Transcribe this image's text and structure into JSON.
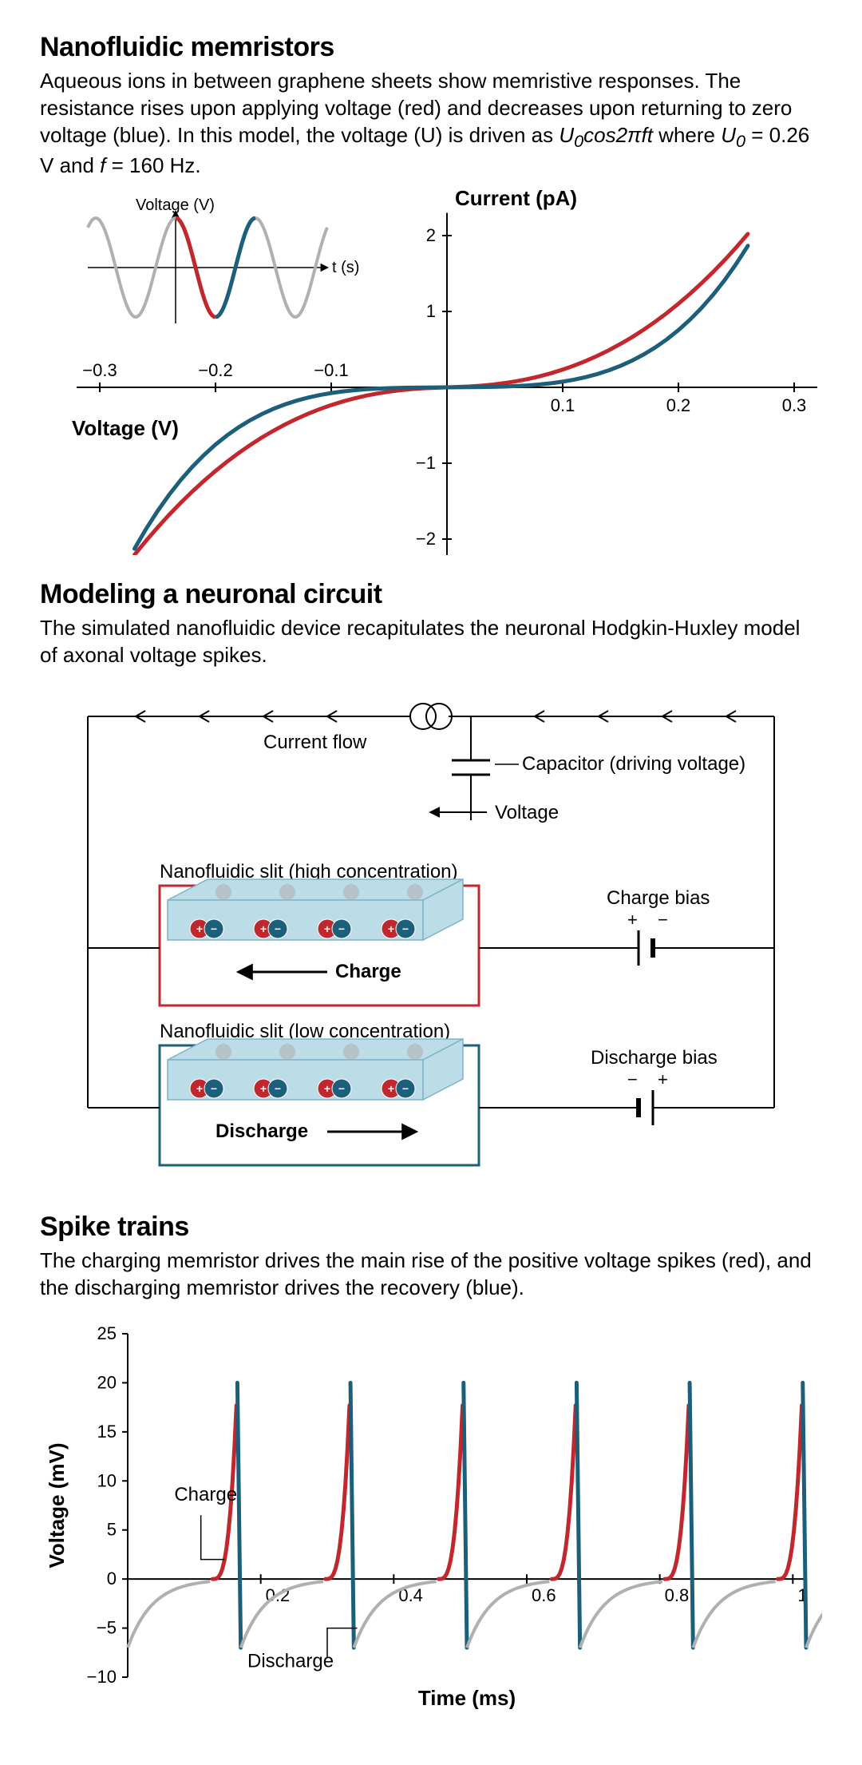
{
  "colors": {
    "red": "#c1272d",
    "blue": "#1b5f7a",
    "grey": "#b0b0b0",
    "black": "#000000",
    "lightblue_fill": "#bcdce8",
    "lightblue_stroke": "#7db3c9"
  },
  "panel1": {
    "title": "Nanofluidic memristors",
    "caption_html": "Aqueous ions in between graphene sheets show memristive responses. The resistance rises upon applying voltage (red) and decreases upon returning to zero voltage (blue). In this model, the voltage (U) is driven as <i>U<sub>0</sub>cos2πft</i> where <i>U<sub>0</sub></i> = 0.26 V and <i>f</i> = 160 Hz.",
    "y_axis_title": "Current (pA)",
    "x_axis_title": "Voltage (V)",
    "inset": {
      "ylabel": "Voltage (V)",
      "xlabel": "t (s)"
    },
    "xticks": [
      -0.3,
      -0.2,
      -0.1,
      0.1,
      0.2,
      0.3
    ],
    "yticks": [
      -2,
      -1,
      1,
      2
    ]
  },
  "panel2": {
    "title": "Modeling a neuronal circuit",
    "caption": "The simulated nanofluidic device recapitulates the neuronal Hodgkin-Huxley model of axonal voltage spikes.",
    "labels": {
      "current_flow": "Current flow",
      "capacitor": "Capacitor (driving voltage)",
      "voltage": "Voltage",
      "slit_high": "Nanofluidic slit (high concentration)",
      "slit_low": "Nanofluidic slit (low concentration)",
      "charge": "Charge",
      "discharge": "Discharge",
      "charge_bias": "Charge bias",
      "discharge_bias": "Discharge bias",
      "plus": "+",
      "minus": "−"
    }
  },
  "panel3": {
    "title": "Spike trains",
    "caption": "The charging memristor drives the main rise of the positive voltage spikes (red), and the discharging memristor drives the recovery (blue).",
    "y_axis_title": "Voltage (mV)",
    "x_axis_title": "Time (ms)",
    "yticks": [
      -10,
      -5,
      0,
      5,
      10,
      15,
      20,
      25
    ],
    "xticks": [
      0.2,
      0.4,
      0.6,
      0.8,
      1
    ],
    "charge_label": "Charge",
    "discharge_label": "Discharge",
    "spike_period": 0.17,
    "spike_first": 0.0,
    "spike_count": 7,
    "y_range": [
      -10,
      25
    ]
  }
}
